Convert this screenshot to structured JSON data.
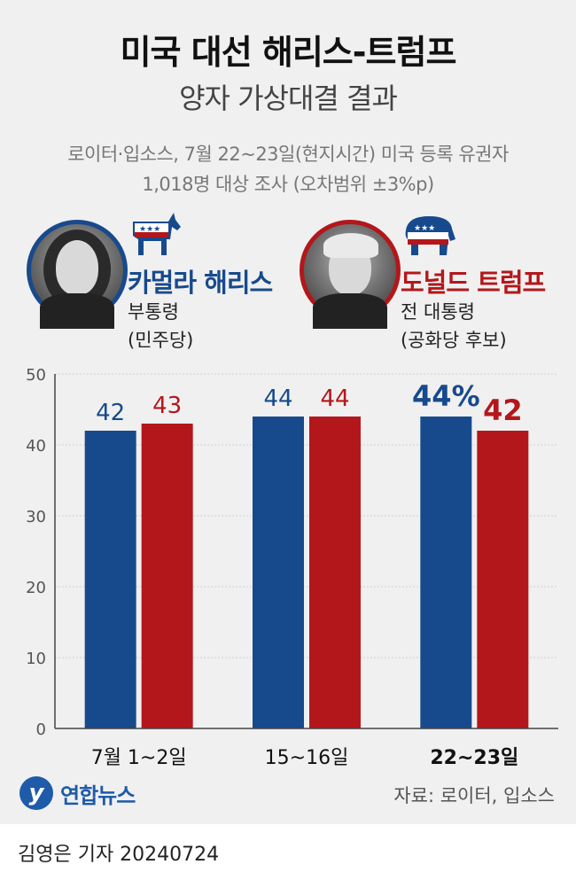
{
  "header": {
    "title": "미국 대선 해리스-트럼프",
    "subtitle": "양자 가상대결 결과",
    "note_line1": "로이터·입소스, 7월 22~23일(현지시간) 미국 등록 유권자",
    "note_line2": "1,018명 대상 조사 (오차범위 ±3%p)"
  },
  "candidates": {
    "dem": {
      "name": "카멀라 해리스",
      "role1": "부통령",
      "role2": "(민주당)",
      "color": "#174a8c",
      "mascot": "democratic-donkey-icon"
    },
    "rep": {
      "name": "도널드 트럼프",
      "role1": "전 대통령",
      "role2": "(공화당 후보)",
      "color": "#b3171b",
      "mascot": "republican-elephant-icon"
    }
  },
  "chart_data": {
    "type": "bar",
    "categories": [
      "7월 1~2일",
      "15~16일",
      "22~23일"
    ],
    "series": [
      {
        "name": "카멀라 해리스",
        "values": [
          42,
          44,
          44
        ],
        "labels": [
          "42",
          "44",
          "44%"
        ],
        "color": "#174a8c"
      },
      {
        "name": "도널드 트럼프",
        "values": [
          43,
          44,
          42
        ],
        "labels": [
          "43",
          "44",
          "42"
        ],
        "color": "#b3171b"
      }
    ],
    "ylim": [
      0,
      50
    ],
    "yticks": [
      "0",
      "10",
      "20",
      "30",
      "40",
      "50"
    ],
    "highlight_category": 2,
    "grid": true
  },
  "footer": {
    "logo_text": "연합뉴스",
    "source": "자료: 로이터, 입소스",
    "byline": "김영은 기자  20240724"
  }
}
